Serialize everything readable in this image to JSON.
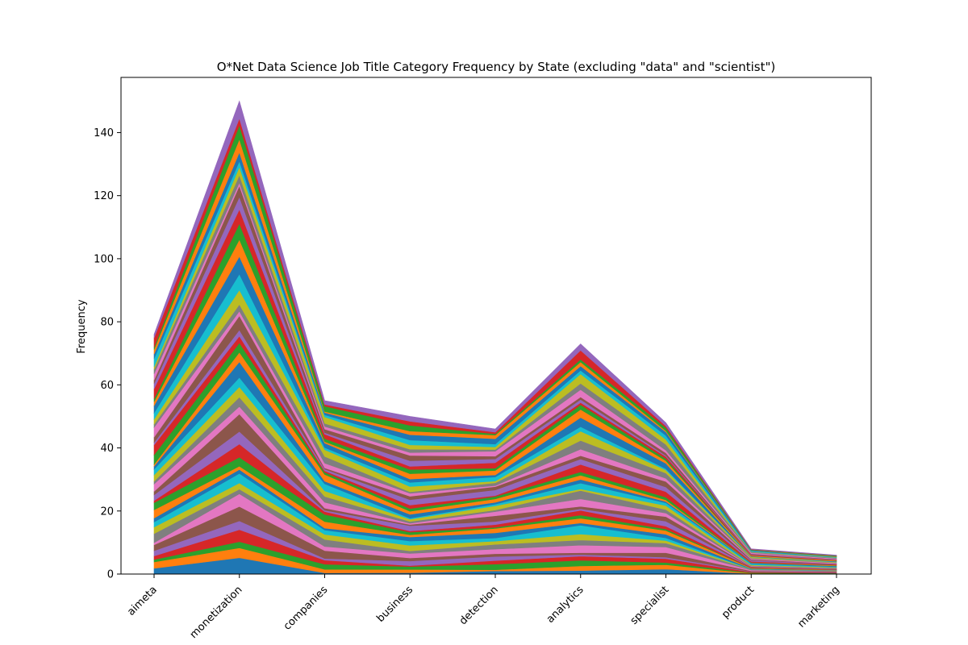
{
  "chart_data": {
    "type": "area",
    "stacked": true,
    "title": "O*Net Data Science Job Title Category Frequency by State (excluding \"data\" and \"scientist\")",
    "xlabel": "",
    "ylabel": "Frequency",
    "categories": [
      "aimeta",
      "monetization",
      "companies",
      "business",
      "detection",
      "analytics",
      "specialist",
      "product",
      "marketing"
    ],
    "totals": [
      76,
      150,
      55,
      50,
      46,
      73,
      48,
      8,
      6
    ],
    "layer_count": 45,
    "ylim": [
      0,
      157.5
    ],
    "yticks": [
      0,
      20,
      40,
      60,
      80,
      100,
      120,
      140
    ],
    "grid": false,
    "legend": "none",
    "colors": [
      "#1f77b4",
      "#ff7f0e",
      "#2ca02c",
      "#d62728",
      "#9467bd",
      "#8c564b",
      "#e377c2",
      "#7f7f7f",
      "#bcbd22",
      "#17becf"
    ]
  }
}
